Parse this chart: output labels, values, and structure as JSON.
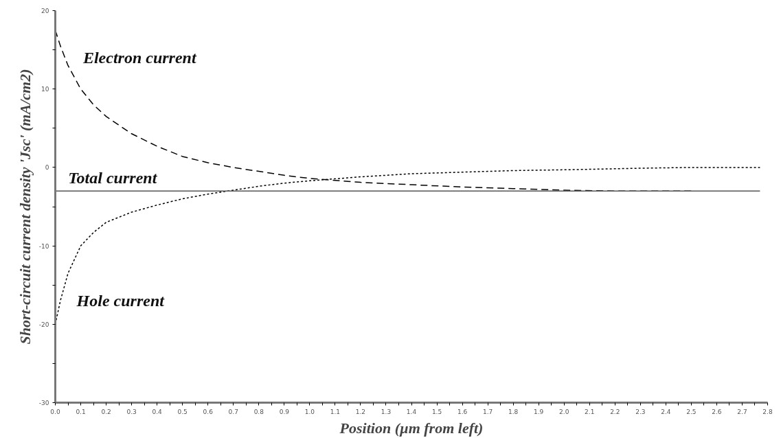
{
  "chart_data": {
    "type": "line",
    "xlabel": "Position (µm from left)",
    "ylabel": "Short-circuit current density 'Jsc' (mA/cm2)",
    "xlim": [
      0,
      2.8
    ],
    "ylim": [
      -30,
      20
    ],
    "xticks": [
      {
        "value": 0,
        "label": "0.0"
      },
      {
        "value": 0.05,
        "label": null
      },
      {
        "value": 0.1,
        "label": "0.1"
      },
      {
        "value": 0.15,
        "label": null
      },
      {
        "value": 0.2,
        "label": "0.2"
      },
      {
        "value": 0.25,
        "label": null
      },
      {
        "value": 0.3,
        "label": "0.3"
      },
      {
        "value": 0.35,
        "label": null
      },
      {
        "value": 0.4,
        "label": "0.4"
      },
      {
        "value": 0.45,
        "label": null
      },
      {
        "value": 0.5,
        "label": "0.5"
      },
      {
        "value": 0.55,
        "label": null
      },
      {
        "value": 0.6,
        "label": "0.6"
      },
      {
        "value": 0.65,
        "label": null
      },
      {
        "value": 0.7,
        "label": "0.7"
      },
      {
        "value": 0.75,
        "label": null
      },
      {
        "value": 0.8,
        "label": "0.8"
      },
      {
        "value": 0.85,
        "label": null
      },
      {
        "value": 0.9,
        "label": "0.9"
      },
      {
        "value": 0.95,
        "label": null
      },
      {
        "value": 1.0,
        "label": "1.0"
      },
      {
        "value": 1.05,
        "label": null
      },
      {
        "value": 1.1,
        "label": "1.1"
      },
      {
        "value": 1.15,
        "label": null
      },
      {
        "value": 1.2,
        "label": "1.2"
      },
      {
        "value": 1.25,
        "label": null
      },
      {
        "value": 1.3,
        "label": "1.3"
      },
      {
        "value": 1.35,
        "label": null
      },
      {
        "value": 1.4,
        "label": "1.4"
      },
      {
        "value": 1.45,
        "label": null
      },
      {
        "value": 1.5,
        "label": "1.5"
      },
      {
        "value": 1.55,
        "label": null
      },
      {
        "value": 1.6,
        "label": "1.6"
      },
      {
        "value": 1.65,
        "label": null
      },
      {
        "value": 1.7,
        "label": "1.7"
      },
      {
        "value": 1.75,
        "label": null
      },
      {
        "value": 1.8,
        "label": "1.8"
      },
      {
        "value": 1.85,
        "label": null
      },
      {
        "value": 1.9,
        "label": "1.9"
      },
      {
        "value": 1.95,
        "label": null
      },
      {
        "value": 2.0,
        "label": "2.0"
      },
      {
        "value": 2.05,
        "label": null
      },
      {
        "value": 2.1,
        "label": "2.1"
      },
      {
        "value": 2.15,
        "label": null
      },
      {
        "value": 2.2,
        "label": "2.2"
      },
      {
        "value": 2.25,
        "label": null
      },
      {
        "value": 2.3,
        "label": "2.3"
      },
      {
        "value": 2.35,
        "label": null
      },
      {
        "value": 2.4,
        "label": "2.4"
      },
      {
        "value": 2.45,
        "label": null
      },
      {
        "value": 2.5,
        "label": "2.5"
      },
      {
        "value": 2.55,
        "label": null
      },
      {
        "value": 2.6,
        "label": "2.6"
      },
      {
        "value": 2.65,
        "label": null
      },
      {
        "value": 2.7,
        "label": "2.7"
      },
      {
        "value": 2.75,
        "label": null
      },
      {
        "value": 2.8,
        "label": "2.8"
      }
    ],
    "yticks": [
      -30,
      {
        "value": -25,
        "label": null
      },
      -20,
      {
        "value": -15,
        "label": null
      },
      -10,
      {
        "value": -5,
        "label": null
      },
      0,
      {
        "value": 5,
        "label": null
      },
      10,
      {
        "value": 15,
        "label": null
      },
      20
    ],
    "grid": false,
    "marker": "none",
    "series": [
      {
        "color": "#000000",
        "line_style": "dashed",
        "x": [
          0,
          0.02,
          0.05,
          0.1,
          0.15,
          0.2,
          0.3,
          0.4,
          0.5,
          0.6,
          0.7,
          0.8,
          0.9,
          1.0,
          1.2,
          1.4,
          1.6,
          1.8,
          2.0,
          2.2,
          2.5
        ],
        "values": [
          17.5,
          15.5,
          13,
          10,
          8,
          6.5,
          4.3,
          2.7,
          1.4,
          0.6,
          0,
          -0.5,
          -1,
          -1.4,
          -1.9,
          -2.2,
          -2.5,
          -2.7,
          -2.9,
          -3.0,
          -3.0
        ]
      },
      {
        "color": "#000000",
        "line_style": "dotted",
        "x": [
          0,
          0.02,
          0.05,
          0.1,
          0.15,
          0.2,
          0.3,
          0.4,
          0.5,
          0.6,
          0.7,
          0.8,
          0.9,
          1.0,
          1.2,
          1.4,
          1.6,
          1.8,
          2.0,
          2.3,
          2.5,
          2.77
        ],
        "values": [
          -20,
          -17,
          -13.5,
          -10,
          -8.3,
          -7,
          -5.7,
          -4.8,
          -4,
          -3.4,
          -2.9,
          -2.4,
          -2.0,
          -1.7,
          -1.2,
          -0.8,
          -0.6,
          -0.4,
          -0.3,
          -0.1,
          0,
          0
        ]
      },
      {
        "color": "#555555",
        "line_style": "solid",
        "x": [
          0,
          2.77
        ],
        "values": [
          -3,
          -3
        ]
      }
    ],
    "annotations": [
      "Electron current",
      "Total current",
      "Hole current"
    ]
  }
}
